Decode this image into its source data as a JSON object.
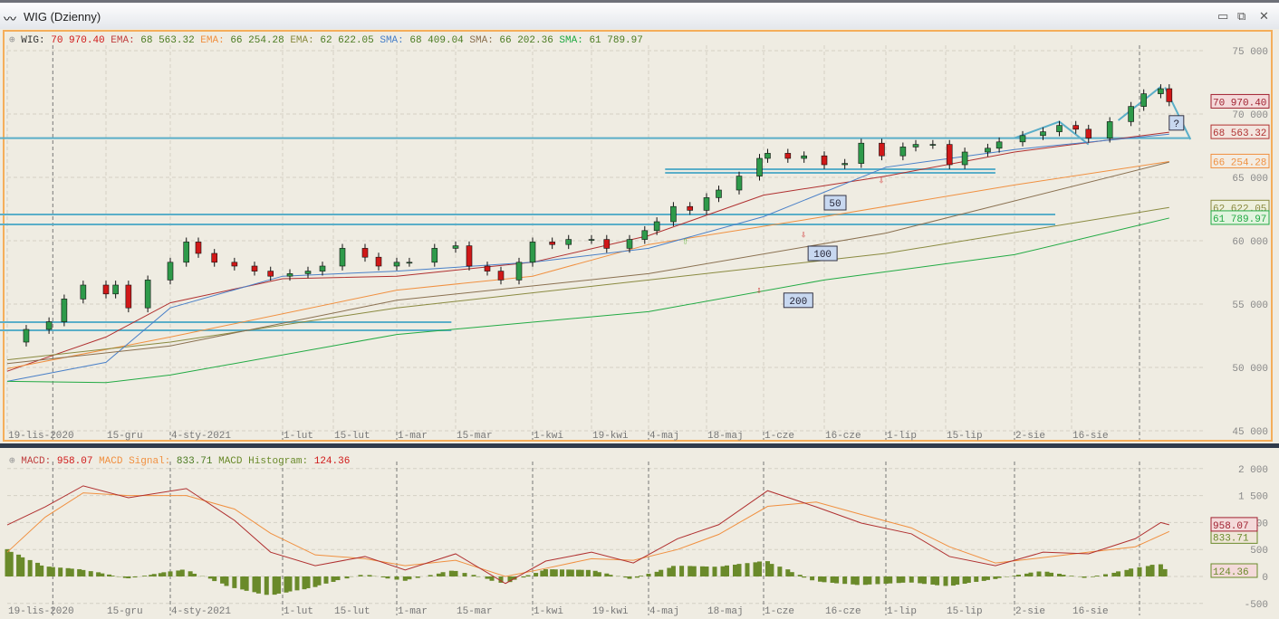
{
  "window": {
    "title": "WIG (Dzienny)",
    "minimize_icon": "minimize-icon",
    "restore_icon": "restore-icon",
    "close_icon": "close-icon"
  },
  "colors": {
    "price_up": "#2e9a4a",
    "price_down": "#d01818",
    "ema1": "#b03030",
    "ema2": "#f09040",
    "ema3": "#8a8a40",
    "sma1": "#4a80c8",
    "sma2": "#8a7050",
    "sma3": "#22aa44",
    "support": "#5aaec8",
    "macd": "#b03030",
    "signal": "#f09040",
    "hist": "#6a8a2a"
  },
  "main_legend": [
    {
      "label": "WIG:",
      "value": "70 970.40",
      "label_color": "#333",
      "value_color": "#d01818"
    },
    {
      "label": "EMA:",
      "value": "68 563.32",
      "label_color": "#c04040",
      "value_color": "#4a7a20"
    },
    {
      "label": "EMA:",
      "value": "66 254.28",
      "label_color": "#f09040",
      "value_color": "#4a7a20"
    },
    {
      "label": "EMA:",
      "value": "62 622.05",
      "label_color": "#8a8a40",
      "value_color": "#4a7a20"
    },
    {
      "label": "SMA:",
      "value": "68 409.04",
      "label_color": "#4a80c8",
      "value_color": "#4a7a20"
    },
    {
      "label": "SMA:",
      "value": "66 202.36",
      "label_color": "#8a7050",
      "value_color": "#4a7a20"
    },
    {
      "label": "SMA:",
      "value": "61 789.97",
      "label_color": "#22aa44",
      "value_color": "#4a7a20"
    }
  ],
  "macd_legend": [
    {
      "label": "MACD:",
      "value": "958.07",
      "label_color": "#c04040",
      "value_color": "#d01818"
    },
    {
      "label": "MACD Signal:",
      "value": "833.71",
      "label_color": "#f09040",
      "value_color": "#4a7a20"
    },
    {
      "label": "MACD Histogram:",
      "value": "124.36",
      "label_color": "#6a8a2a",
      "value_color": "#d01818"
    }
  ],
  "chart_data": [
    {
      "type": "candlestick",
      "ylim": [
        45000,
        75000
      ],
      "yticks": [
        "45 000",
        "50 000",
        "55 000",
        "60 000",
        "65 000",
        "70 000",
        "75 000"
      ],
      "ytick_values": [
        45000,
        50000,
        55000,
        60000,
        65000,
        70000,
        75000
      ],
      "xticks": [
        {
          "date": "2020-11-19",
          "label": "19-lis-2020"
        },
        {
          "date": "2020-12-15",
          "label": "15-gru"
        },
        {
          "date": "2021-01-04",
          "label": "4-sty-2021"
        },
        {
          "date": "2021-02-01",
          "label": "1-lut"
        },
        {
          "date": "2021-02-15",
          "label": "15-lut"
        },
        {
          "date": "2021-03-01",
          "label": "1-mar"
        },
        {
          "date": "2021-03-15",
          "label": "15-mar"
        },
        {
          "date": "2021-04-01",
          "label": "1-kwi"
        },
        {
          "date": "2021-04-19",
          "label": "19-kwi"
        },
        {
          "date": "2021-05-04",
          "label": "4-maj"
        },
        {
          "date": "2021-05-18",
          "label": "18-maj"
        },
        {
          "date": "2021-06-01",
          "label": "1-cze"
        },
        {
          "date": "2021-06-16",
          "label": "16-cze"
        },
        {
          "date": "2021-07-01",
          "label": "1-lip"
        },
        {
          "date": "2021-07-15",
          "label": "15-lip"
        },
        {
          "date": "2021-08-02",
          "label": "2-sie"
        },
        {
          "date": "2021-08-16",
          "label": "16-sie"
        }
      ],
      "grid": true,
      "close": [
        [
          "2020-11-19",
          52000
        ],
        [
          "2020-11-24",
          53000
        ],
        [
          "2020-11-30",
          53600
        ],
        [
          "2020-12-04",
          55400
        ],
        [
          "2020-12-09",
          56500
        ],
        [
          "2020-12-15",
          55800
        ],
        [
          "2020-12-18",
          56500
        ],
        [
          "2020-12-22",
          54700
        ],
        [
          "2020-12-28",
          56900
        ],
        [
          "2021-01-04",
          58300
        ],
        [
          "2021-01-08",
          59900
        ],
        [
          "2021-01-11",
          59000
        ],
        [
          "2021-01-15",
          58300
        ],
        [
          "2021-01-20",
          58000
        ],
        [
          "2021-01-25",
          57600
        ],
        [
          "2021-01-29",
          57200
        ],
        [
          "2021-02-03",
          57400
        ],
        [
          "2021-02-08",
          57600
        ],
        [
          "2021-02-12",
          58000
        ],
        [
          "2021-02-17",
          59400
        ],
        [
          "2021-02-22",
          58700
        ],
        [
          "2021-02-25",
          58000
        ],
        [
          "2021-03-01",
          58300
        ],
        [
          "2021-03-04",
          58300
        ],
        [
          "2021-03-10",
          59400
        ],
        [
          "2021-03-15",
          59600
        ],
        [
          "2021-03-18",
          58000
        ],
        [
          "2021-03-22",
          57600
        ],
        [
          "2021-03-25",
          56900
        ],
        [
          "2021-03-29",
          58300
        ],
        [
          "2021-04-01",
          59900
        ],
        [
          "2021-04-07",
          59700
        ],
        [
          "2021-04-12",
          60100
        ],
        [
          "2021-04-19",
          60100
        ],
        [
          "2021-04-23",
          59400
        ],
        [
          "2021-04-29",
          60100
        ],
        [
          "2021-05-03",
          60800
        ],
        [
          "2021-05-06",
          61500
        ],
        [
          "2021-05-10",
          62700
        ],
        [
          "2021-05-14",
          62400
        ],
        [
          "2021-05-18",
          63400
        ],
        [
          "2021-05-21",
          64000
        ],
        [
          "2021-05-26",
          65100
        ],
        [
          "2021-05-31",
          66500
        ],
        [
          "2021-06-02",
          66900
        ],
        [
          "2021-06-07",
          66500
        ],
        [
          "2021-06-11",
          66700
        ],
        [
          "2021-06-16",
          66000
        ],
        [
          "2021-06-21",
          66100
        ],
        [
          "2021-06-25",
          67700
        ],
        [
          "2021-06-30",
          66700
        ],
        [
          "2021-07-05",
          67400
        ],
        [
          "2021-07-08",
          67600
        ],
        [
          "2021-07-12",
          67600
        ],
        [
          "2021-07-16",
          66000
        ],
        [
          "2021-07-20",
          67000
        ],
        [
          "2021-07-26",
          67300
        ],
        [
          "2021-07-29",
          67800
        ],
        [
          "2021-08-04",
          68300
        ],
        [
          "2021-08-09",
          68600
        ],
        [
          "2021-08-13",
          69100
        ],
        [
          "2021-08-17",
          68800
        ],
        [
          "2021-08-20",
          68100
        ],
        [
          "2021-08-25",
          69400
        ],
        [
          "2021-08-30",
          70600
        ],
        [
          "2021-09-02",
          71600
        ],
        [
          "2021-09-06",
          72000
        ],
        [
          "2021-09-08",
          70970.4
        ]
      ],
      "series": [
        {
          "name": "EMA",
          "color_key": "ema1",
          "last": "68 563.32",
          "label_bg": "#f3e6df",
          "points": [
            [
              "2020-11-19",
              49700
            ],
            [
              "2020-12-15",
              52400
            ],
            [
              "2021-01-04",
              55100
            ],
            [
              "2021-02-01",
              57000
            ],
            [
              "2021-03-01",
              57200
            ],
            [
              "2021-04-01",
              58300
            ],
            [
              "2021-05-04",
              60400
            ],
            [
              "2021-06-01",
              63600
            ],
            [
              "2021-07-01",
              65100
            ],
            [
              "2021-08-02",
              67000
            ],
            [
              "2021-09-08",
              68563
            ]
          ]
        },
        {
          "name": "EMA",
          "color_key": "ema2",
          "last": "66 254.28",
          "label_bg": "#f3ece2",
          "points": [
            [
              "2020-11-19",
              49900
            ],
            [
              "2021-01-04",
              52400
            ],
            [
              "2021-03-01",
              56100
            ],
            [
              "2021-04-01",
              57200
            ],
            [
              "2021-05-04",
              59700
            ],
            [
              "2021-06-16",
              61900
            ],
            [
              "2021-08-02",
              64400
            ],
            [
              "2021-09-08",
              66254
            ]
          ]
        },
        {
          "name": "EMA",
          "color_key": "ema3",
          "last": "62 622.05",
          "label_bg": "#eef0dc",
          "points": [
            [
              "2020-11-19",
              50600
            ],
            [
              "2021-01-04",
              52000
            ],
            [
              "2021-03-01",
              54700
            ],
            [
              "2021-05-04",
              56900
            ],
            [
              "2021-07-01",
              59000
            ],
            [
              "2021-09-08",
              62622
            ]
          ]
        },
        {
          "name": "SMA",
          "color_key": "sma1",
          "points": [
            [
              "2020-11-19",
              48900
            ],
            [
              "2020-12-15",
              50400
            ],
            [
              "2021-01-04",
              54700
            ],
            [
              "2021-02-01",
              57200
            ],
            [
              "2021-03-01",
              57600
            ],
            [
              "2021-04-01",
              58300
            ],
            [
              "2021-05-04",
              59400
            ],
            [
              "2021-06-01",
              61900
            ],
            [
              "2021-07-01",
              65800
            ],
            [
              "2021-08-02",
              67200
            ],
            [
              "2021-09-08",
              68409
            ]
          ]
        },
        {
          "name": "SMA",
          "color_key": "sma2",
          "points": [
            [
              "2020-11-19",
              50300
            ],
            [
              "2021-01-04",
              51700
            ],
            [
              "2021-03-01",
              55300
            ],
            [
              "2021-05-04",
              57400
            ],
            [
              "2021-07-01",
              60600
            ],
            [
              "2021-09-08",
              66202
            ]
          ]
        },
        {
          "name": "SMA",
          "color_key": "sma3",
          "last": "61 789.97",
          "label_bg": "#e2f4df",
          "points": [
            [
              "2020-11-19",
              48900
            ],
            [
              "2020-12-15",
              48800
            ],
            [
              "2021-01-04",
              49400
            ],
            [
              "2021-03-01",
              52600
            ],
            [
              "2021-05-04",
              54400
            ],
            [
              "2021-06-16",
              56900
            ],
            [
              "2021-08-02",
              58900
            ],
            [
              "2021-09-08",
              61790
            ]
          ]
        }
      ],
      "last_price_label": "70 970.40",
      "support_lines": [
        {
          "value": 68100,
          "from": "2020-11-16",
          "to": "2021-09-13"
        },
        {
          "value": 65640,
          "from": "2021-05-08",
          "to": "2021-07-28"
        },
        {
          "value": 65360,
          "from": "2021-05-08",
          "to": "2021-07-28"
        },
        {
          "value": 62070,
          "from": "2020-11-16",
          "to": "2021-08-12"
        },
        {
          "value": 61290,
          "from": "2020-11-16",
          "to": "2021-08-12"
        },
        {
          "value": 53570,
          "from": "2020-11-16",
          "to": "2021-03-14"
        },
        {
          "value": 52930,
          "from": "2020-11-16",
          "to": "2021-03-14"
        }
      ],
      "trend_lines": [
        [
          [
            "2021-08-02",
            68100
          ],
          [
            "2021-08-13",
            69400
          ],
          [
            "2021-08-20",
            67600
          ]
        ],
        [
          [
            "2021-08-27",
            69500
          ],
          [
            "2021-09-06",
            72150
          ]
        ],
        [
          [
            "2021-09-07",
            72100
          ],
          [
            "2021-09-13",
            68000
          ]
        ]
      ],
      "annotations": [
        {
          "label": "50",
          "date": "2021-06-16",
          "value": 63000
        },
        {
          "label": "100",
          "date": "2021-06-12",
          "value": 59000
        },
        {
          "label": "200",
          "date": "2021-06-06",
          "value": 55300
        },
        {
          "label": "?",
          "date": "2021-09-08",
          "value": 69300
        }
      ],
      "signals": [
        {
          "dir": "up",
          "date": "2021-05-13",
          "value": 60100
        },
        {
          "dir": "down",
          "date": "2021-06-30",
          "value": 64900
        },
        {
          "dir": "down",
          "date": "2021-06-11",
          "value": 60600
        },
        {
          "dir": "down",
          "date": "2021-05-31",
          "value": 56200
        }
      ]
    },
    {
      "type": "line+bar",
      "ylim": [
        -500,
        2000
      ],
      "yticks": [
        "-500",
        "0",
        "500",
        "1 000",
        "1 500",
        "2 000"
      ],
      "ytick_values": [
        -500,
        0,
        500,
        1000,
        1500,
        2000
      ],
      "macd": [
        [
          "2020-11-19",
          956
        ],
        [
          "2020-11-29",
          1290
        ],
        [
          "2020-12-09",
          1680
        ],
        [
          "2020-12-22",
          1460
        ],
        [
          "2021-01-08",
          1630
        ],
        [
          "2021-01-20",
          1040
        ],
        [
          "2021-01-29",
          450
        ],
        [
          "2021-02-10",
          200
        ],
        [
          "2021-02-22",
          370
        ],
        [
          "2021-03-03",
          120
        ],
        [
          "2021-03-15",
          420
        ],
        [
          "2021-03-26",
          -130
        ],
        [
          "2021-04-05",
          285
        ],
        [
          "2021-04-19",
          450
        ],
        [
          "2021-04-30",
          250
        ],
        [
          "2021-05-11",
          700
        ],
        [
          "2021-05-21",
          960
        ],
        [
          "2021-06-02",
          1590
        ],
        [
          "2021-06-14",
          1290
        ],
        [
          "2021-06-25",
          990
        ],
        [
          "2021-07-07",
          790
        ],
        [
          "2021-07-16",
          370
        ],
        [
          "2021-07-28",
          200
        ],
        [
          "2021-08-09",
          450
        ],
        [
          "2021-08-20",
          420
        ],
        [
          "2021-08-31",
          700
        ],
        [
          "2021-09-06",
          1000
        ],
        [
          "2021-09-08",
          958.07
        ]
      ],
      "signal": [
        [
          "2020-11-19",
          450
        ],
        [
          "2020-11-29",
          1100
        ],
        [
          "2020-12-09",
          1550
        ],
        [
          "2020-12-22",
          1500
        ],
        [
          "2021-01-08",
          1500
        ],
        [
          "2021-01-20",
          1250
        ],
        [
          "2021-01-29",
          800
        ],
        [
          "2021-02-10",
          400
        ],
        [
          "2021-02-22",
          330
        ],
        [
          "2021-03-03",
          200
        ],
        [
          "2021-03-15",
          300
        ],
        [
          "2021-03-26",
          0
        ],
        [
          "2021-04-05",
          150
        ],
        [
          "2021-04-19",
          330
        ],
        [
          "2021-04-30",
          300
        ],
        [
          "2021-05-11",
          500
        ],
        [
          "2021-05-21",
          780
        ],
        [
          "2021-06-02",
          1300
        ],
        [
          "2021-06-14",
          1380
        ],
        [
          "2021-06-25",
          1150
        ],
        [
          "2021-07-07",
          900
        ],
        [
          "2021-07-16",
          550
        ],
        [
          "2021-07-28",
          250
        ],
        [
          "2021-08-09",
          350
        ],
        [
          "2021-08-20",
          450
        ],
        [
          "2021-08-31",
          550
        ],
        [
          "2021-09-08",
          833.71
        ]
      ],
      "last_macd_label": "958.07",
      "last_signal_label": "833.71",
      "last_hist_label": "124.36"
    }
  ]
}
